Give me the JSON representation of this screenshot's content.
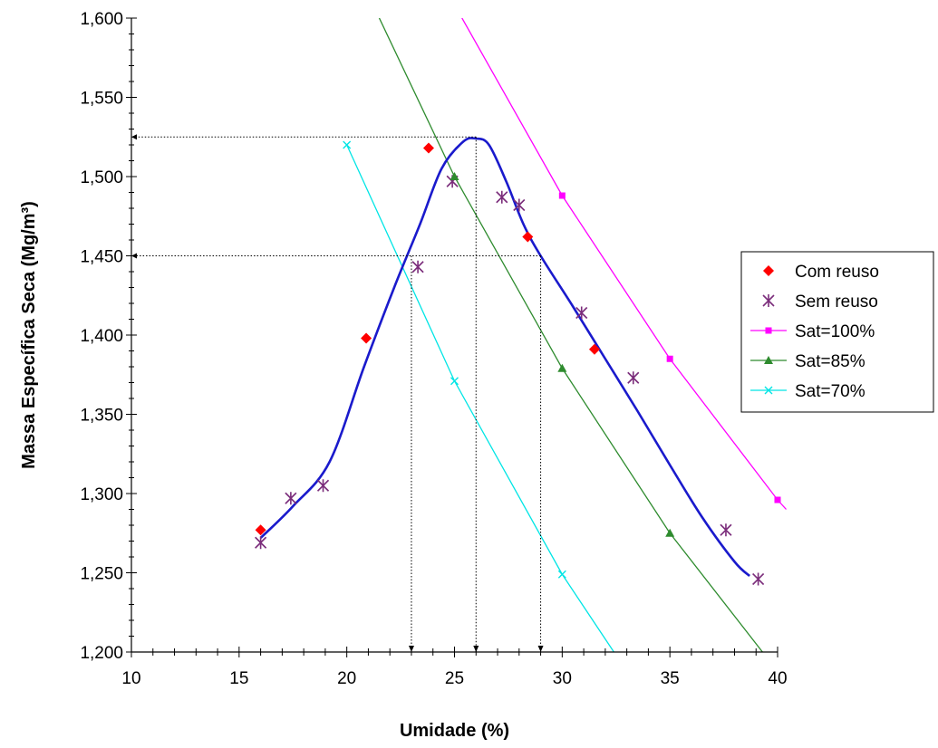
{
  "chart_data": {
    "type": "scatter",
    "xlabel": "Umidade (%)",
    "ylabel": "Massa Específica Seca (Mg/m³)",
    "xlim": [
      10,
      40
    ],
    "ylim": [
      1.2,
      1.6
    ],
    "x_ticks": [
      "10",
      "15",
      "20",
      "25",
      "30",
      "35",
      "40"
    ],
    "y_ticks": [
      "1,200",
      "1,250",
      "1,300",
      "1,350",
      "1,400",
      "1,450",
      "1,500",
      "1,550",
      "1,600"
    ],
    "legend_position": "right",
    "series": [
      {
        "name": "Com reuso",
        "kind": "points",
        "marker": "diamond",
        "color": "#ff0000",
        "points": [
          [
            16.0,
            1.277
          ],
          [
            20.9,
            1.398
          ],
          [
            23.8,
            1.518
          ],
          [
            28.4,
            1.462
          ],
          [
            31.5,
            1.391
          ]
        ]
      },
      {
        "name": "Sem reuso",
        "kind": "points",
        "marker": "asterisk",
        "color": "#7b2d7b",
        "points": [
          [
            16.0,
            1.269
          ],
          [
            17.4,
            1.297
          ],
          [
            18.9,
            1.305
          ],
          [
            23.3,
            1.443
          ],
          [
            24.9,
            1.497
          ],
          [
            27.2,
            1.487
          ],
          [
            28.0,
            1.482
          ],
          [
            30.9,
            1.414
          ],
          [
            33.3,
            1.373
          ],
          [
            37.6,
            1.277
          ],
          [
            39.1,
            1.246
          ]
        ]
      },
      {
        "name": "Sat=100%",
        "kind": "line",
        "marker": "square",
        "color": "#ff00ff",
        "points": [
          [
            30,
            1.488
          ],
          [
            35,
            1.385
          ],
          [
            40,
            1.296
          ]
        ],
        "line": [
          [
            25.1,
            1.606
          ],
          [
            30,
            1.488
          ],
          [
            35,
            1.385
          ],
          [
            40,
            1.296
          ],
          [
            40.4,
            1.29
          ]
        ]
      },
      {
        "name": "Sat=85%",
        "kind": "line",
        "marker": "triangle",
        "color": "#2e8b2e",
        "points": [
          [
            25,
            1.5
          ],
          [
            30,
            1.379
          ],
          [
            35,
            1.275
          ]
        ],
        "line": [
          [
            21.3,
            1.606
          ],
          [
            25,
            1.5
          ],
          [
            30,
            1.379
          ],
          [
            35,
            1.275
          ],
          [
            39.3,
            1.2
          ]
        ]
      },
      {
        "name": "Sat=70%",
        "kind": "line",
        "marker": "x",
        "color": "#00e5e5",
        "points": [
          [
            20,
            1.52
          ],
          [
            25,
            1.371
          ],
          [
            30,
            1.249
          ]
        ],
        "line": [
          [
            20,
            1.52
          ],
          [
            25,
            1.371
          ],
          [
            30,
            1.249
          ],
          [
            32.4,
            1.2
          ]
        ]
      }
    ],
    "compaction_curve": {
      "color": "#1a1acc",
      "points": [
        [
          16.0,
          1.272
        ],
        [
          17.5,
          1.292
        ],
        [
          19.2,
          1.32
        ],
        [
          20.8,
          1.38
        ],
        [
          22.2,
          1.43
        ],
        [
          23.4,
          1.47
        ],
        [
          24.4,
          1.505
        ],
        [
          25.4,
          1.522
        ],
        [
          26.0,
          1.524
        ],
        [
          26.6,
          1.52
        ],
        [
          27.4,
          1.497
        ],
        [
          28.2,
          1.47
        ],
        [
          29.0,
          1.45
        ],
        [
          30.5,
          1.418
        ],
        [
          32.0,
          1.385
        ],
        [
          33.5,
          1.352
        ],
        [
          35.0,
          1.318
        ],
        [
          36.5,
          1.285
        ],
        [
          38.0,
          1.257
        ],
        [
          38.7,
          1.248
        ]
      ]
    },
    "reference_lines": [
      {
        "from": [
          26.0,
          1.525
        ],
        "to": [
          10.0,
          1.525
        ],
        "arrow": "y-axis"
      },
      {
        "from": [
          29.0,
          1.45
        ],
        "to": [
          10.0,
          1.45
        ],
        "arrow": "y-axis"
      },
      {
        "from": [
          23.0,
          1.45
        ],
        "to": [
          23.0,
          1.2
        ],
        "arrow": "x-axis"
      },
      {
        "from": [
          26.0,
          1.525
        ],
        "to": [
          26.0,
          1.2
        ],
        "arrow": "x-axis"
      },
      {
        "from": [
          29.0,
          1.45
        ],
        "to": [
          29.0,
          1.2
        ],
        "arrow": "x-axis"
      }
    ]
  }
}
